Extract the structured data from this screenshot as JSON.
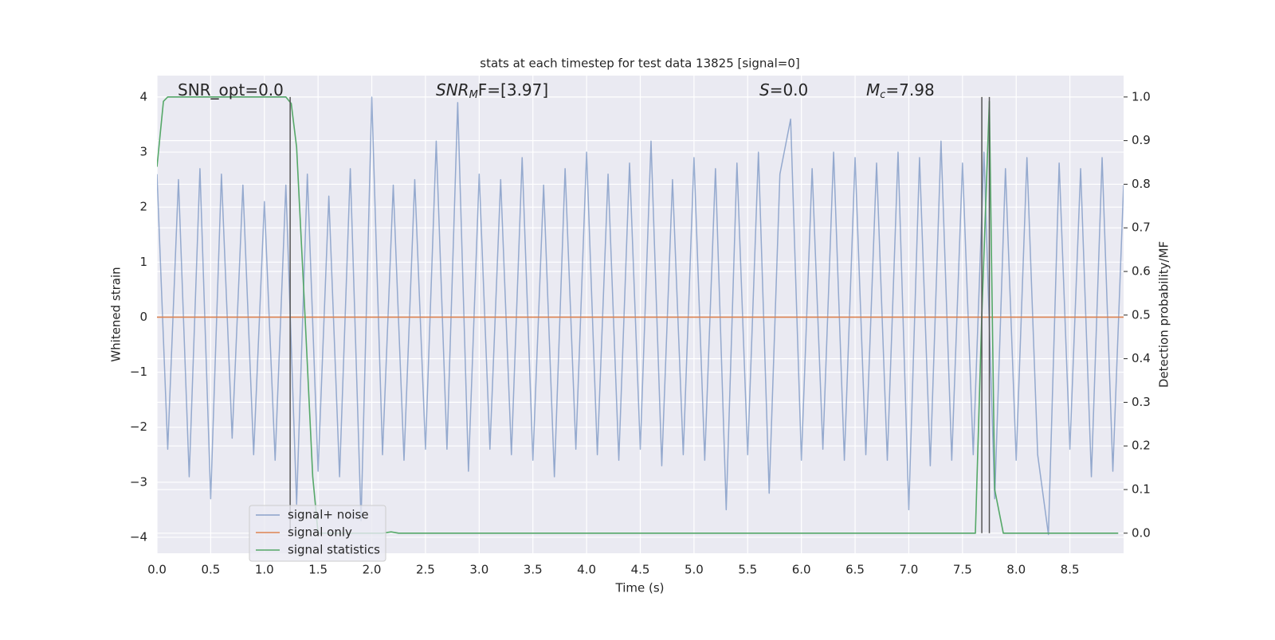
{
  "chart_data": {
    "type": "line",
    "title": "stats at each timestep for test data 13825 [signal=0]",
    "xlabel": "Time (s)",
    "ylabel": "Whitened strain",
    "y2label": "Detection probability/MF",
    "xlim": [
      0,
      9.0
    ],
    "ylim": [
      -4.29,
      4.39
    ],
    "y2lim": [
      -0.046,
      1.049
    ],
    "xticks": [
      {
        "value": 0,
        "label": "0.0"
      },
      0.5,
      {
        "value": 1,
        "label": "1.0"
      },
      1.5,
      {
        "value": 2,
        "label": "2.0"
      },
      2.5,
      {
        "value": 3,
        "label": "3.0"
      },
      3.5,
      {
        "value": 4,
        "label": "4.0"
      },
      4.5,
      {
        "value": 5,
        "label": "5.0"
      },
      5.5,
      {
        "value": 6,
        "label": "6.0"
      },
      6.5,
      {
        "value": 7,
        "label": "7.0"
      },
      7.5,
      {
        "value": 8,
        "label": "8.0"
      },
      8.5
    ],
    "yticks": [
      {
        "value": -4,
        "label": "−4"
      },
      {
        "value": -3,
        "label": "−3"
      },
      {
        "value": -2,
        "label": "−2"
      },
      {
        "value": -1,
        "label": "−1"
      },
      0,
      1,
      2,
      3,
      4
    ],
    "y2ticks": [
      {
        "value": 0,
        "label": "0.0"
      },
      0.1,
      0.2,
      0.3,
      0.4,
      0.5,
      0.6,
      0.7,
      0.8,
      0.9,
      {
        "value": 1,
        "label": "1.0"
      }
    ],
    "grid": true,
    "legend": "lower left",
    "series": [
      {
        "name": "signal+ noise",
        "color": "#4c72b0",
        "x": [
          0.0,
          0.1,
          0.2,
          0.3,
          0.4,
          0.5,
          0.6,
          0.7,
          0.8,
          0.9,
          1.0,
          1.1,
          1.2,
          1.3,
          1.4,
          1.5,
          1.6,
          1.7,
          1.8,
          1.9,
          2.0,
          2.1,
          2.2,
          2.3,
          2.4,
          2.5,
          2.6,
          2.7,
          2.8,
          2.9,
          3.0,
          3.1,
          3.2,
          3.3,
          3.4,
          3.5,
          3.6,
          3.7,
          3.8,
          3.9,
          4.0,
          4.1,
          4.2,
          4.3,
          4.4,
          4.5,
          4.6,
          4.7,
          4.8,
          4.9,
          5.0,
          5.1,
          5.2,
          5.3,
          5.4,
          5.5,
          5.6,
          5.7,
          5.8,
          5.9,
          6.0,
          6.1,
          6.2,
          6.3,
          6.4,
          6.5,
          6.6,
          6.7,
          6.8,
          6.9,
          7.0,
          7.1,
          7.2,
          7.3,
          7.4,
          7.5,
          7.6,
          7.7,
          7.8,
          7.9,
          8.0,
          8.1,
          8.2,
          8.3,
          8.4,
          8.5,
          8.6,
          8.7,
          8.8,
          8.9,
          9.0
        ],
        "values": [
          2.6,
          -2.4,
          2.5,
          -2.9,
          2.7,
          -3.3,
          2.6,
          -2.2,
          2.4,
          -2.5,
          2.1,
          -2.6,
          2.4,
          -3.4,
          2.6,
          -2.8,
          2.2,
          -2.9,
          2.7,
          -3.7,
          4.0,
          -2.5,
          2.4,
          -2.6,
          2.5,
          -2.4,
          3.2,
          -2.4,
          3.9,
          -2.8,
          2.6,
          -2.4,
          2.5,
          -2.5,
          2.9,
          -2.6,
          2.4,
          -2.9,
          2.7,
          -2.4,
          3.0,
          -2.5,
          2.6,
          -2.6,
          2.8,
          -2.4,
          3.2,
          -2.7,
          2.5,
          -2.5,
          2.9,
          -2.6,
          2.7,
          -3.5,
          2.8,
          -2.5,
          3.0,
          -3.2,
          2.6,
          3.6,
          -2.6,
          2.7,
          -2.4,
          3.0,
          -2.6,
          2.9,
          -2.5,
          2.8,
          -2.6,
          3.0,
          -3.5,
          2.9,
          -2.7,
          3.2,
          -2.6,
          2.8,
          -2.5,
          3.0,
          -3.3,
          2.7,
          -2.6,
          2.9,
          -2.5,
          -3.95,
          2.8,
          -2.4,
          2.7,
          -2.9,
          2.9,
          -2.8,
          2.4
        ]
      },
      {
        "name": "signal only",
        "color": "#dd8452",
        "x": [
          0.0,
          9.0
        ],
        "values": [
          0,
          0
        ]
      },
      {
        "name": "signal statistics",
        "color": "#55a868",
        "axis": "y2",
        "x": [
          0.0,
          0.06,
          0.1,
          0.4,
          0.8,
          1.2,
          1.25,
          1.3,
          1.38,
          1.45,
          1.5,
          2.1,
          2.18,
          2.25,
          7.62,
          7.68,
          7.75,
          7.8,
          7.88,
          8.95
        ],
        "values": [
          0.84,
          0.99,
          1.0,
          1.0,
          1.0,
          1.0,
          0.985,
          0.885,
          0.49,
          0.13,
          0.0,
          0.0,
          0.003,
          0.0,
          0.0,
          0.5,
          0.99,
          0.1,
          0.0,
          0.0
        ]
      }
    ],
    "vlines": {
      "color": "#555555",
      "x": [
        1.24,
        7.68,
        7.75
      ],
      "ymin": 0,
      "ymax": 1
    },
    "annotations": [
      {
        "text": "SNR_opt=0.0"
      },
      {
        "text": "SNR",
        "sub": "M",
        "tail": "F=[3.97]"
      },
      {
        "text": "S",
        "tail": "=0.0"
      },
      {
        "text": "M",
        "sub": "c",
        "tail": "=7.98"
      }
    ]
  }
}
